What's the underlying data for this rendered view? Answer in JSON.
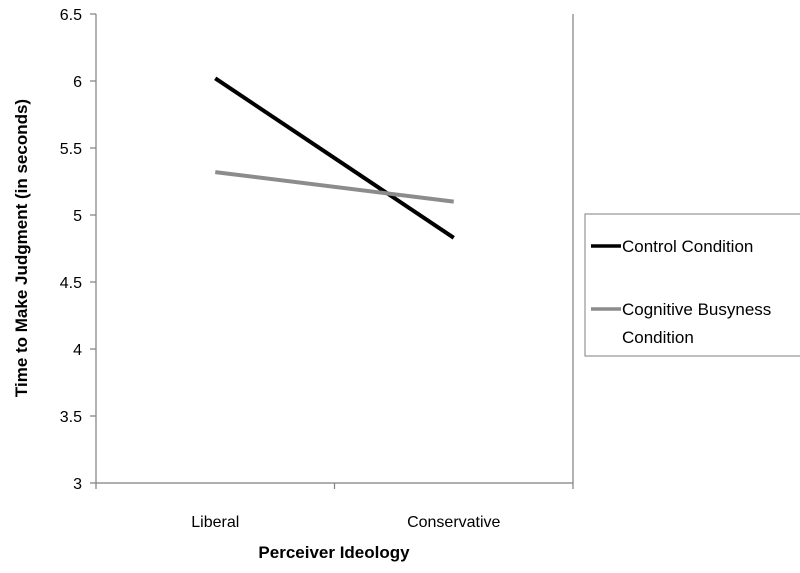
{
  "chart_data": {
    "type": "line",
    "title": "",
    "xlabel": "Perceiver Ideology",
    "ylabel": "Time to Make Judgment (in seconds)",
    "categories": [
      "Liberal",
      "Conservative"
    ],
    "ylim": [
      3,
      6.5
    ],
    "yticks": [
      "3",
      "3.5",
      "4",
      "4.5",
      "5",
      "5.5",
      "6",
      "6.5"
    ],
    "grid": false,
    "legend_position": "right",
    "series": [
      {
        "name": "Control Condition",
        "values": [
          6.02,
          4.83
        ],
        "color": "#000000"
      },
      {
        "name": "Cognitive Busyness Condition",
        "legend_lines": [
          "Cognitive Busyness",
          "Condition"
        ],
        "values": [
          5.32,
          5.1
        ],
        "color": "#8c8c8c"
      }
    ]
  }
}
